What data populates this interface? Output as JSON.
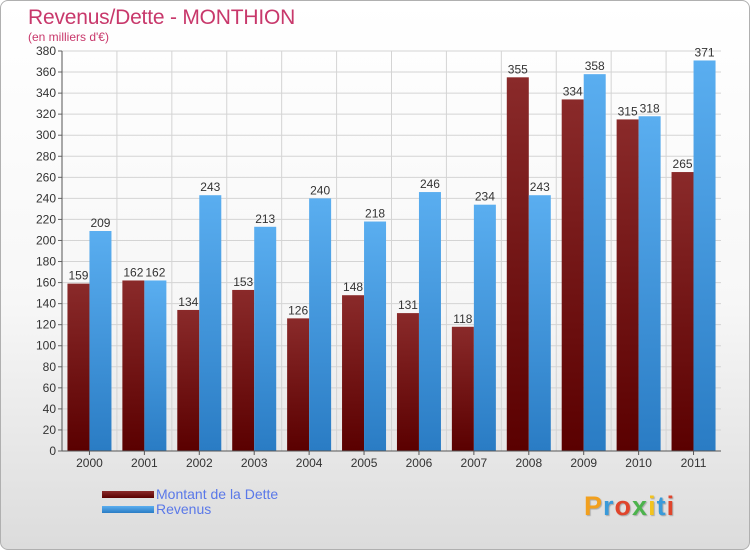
{
  "title": "Revenus/Dette - MONTHION",
  "subtitle": "(en milliers d'€)",
  "colors": {
    "dette": "#7a0f0f",
    "revenus": "#4a9fe0",
    "title": "#c8386b",
    "legend_text": "#5a78e8"
  },
  "logo": {
    "text": "Proxiti"
  },
  "chart_data": {
    "type": "bar",
    "title": "Revenus/Dette - MONTHION",
    "ylabel": "",
    "xlabel": "",
    "ylim": [
      0,
      380
    ],
    "yticks": [
      0,
      20,
      40,
      60,
      80,
      100,
      120,
      140,
      160,
      180,
      200,
      220,
      240,
      260,
      280,
      300,
      320,
      340,
      360,
      380
    ],
    "categories": [
      "2000",
      "2001",
      "2002",
      "2003",
      "2004",
      "2005",
      "2006",
      "2007",
      "2008",
      "2009",
      "2010",
      "2011"
    ],
    "grid": true,
    "legend_position": "bottom-left",
    "series": [
      {
        "name": "Montant de la Dette",
        "values": [
          159,
          162,
          134,
          153,
          126,
          148,
          131,
          118,
          355,
          334,
          315,
          265
        ]
      },
      {
        "name": "Revenus",
        "values": [
          209,
          162,
          243,
          213,
          240,
          218,
          246,
          234,
          243,
          358,
          318,
          371
        ]
      }
    ]
  }
}
